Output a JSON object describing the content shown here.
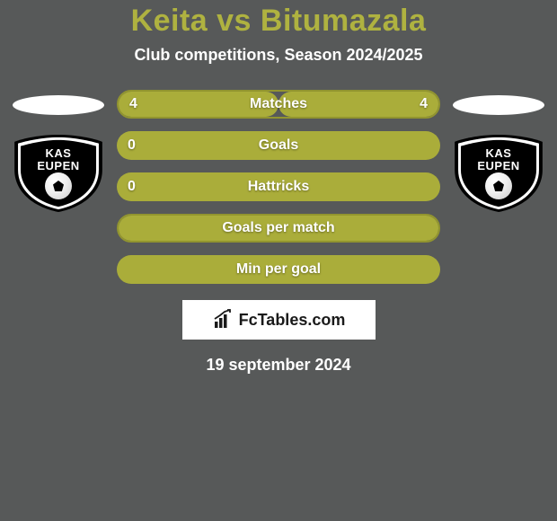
{
  "title": "Keita vs Bitumazala",
  "subtitle": "Club competitions, Season 2024/2025",
  "colors": {
    "background": "#575959",
    "accent": "#aaad3a",
    "bar_border": "#92952f",
    "title": "#afb240",
    "text": "#ffffff",
    "white": "#ffffff",
    "black": "#000000"
  },
  "club_left": {
    "line1": "KAS",
    "line2": "EUPEN"
  },
  "club_right": {
    "line1": "KAS",
    "line2": "EUPEN"
  },
  "stats": [
    {
      "label": "Matches",
      "left_value": "4",
      "right_value": "4",
      "left_pct": 50,
      "right_pct": 50,
      "style": "split",
      "border": true
    },
    {
      "label": "Goals",
      "left_value": "0",
      "right_value": "",
      "left_pct": 0,
      "right_pct": 0,
      "style": "full",
      "border": false
    },
    {
      "label": "Hattricks",
      "left_value": "0",
      "right_value": "",
      "left_pct": 0,
      "right_pct": 0,
      "style": "full",
      "border": false
    },
    {
      "label": "Goals per match",
      "left_value": "",
      "right_value": "",
      "left_pct": 0,
      "right_pct": 0,
      "style": "full",
      "border": true
    },
    {
      "label": "Min per goal",
      "left_value": "",
      "right_value": "",
      "left_pct": 0,
      "right_pct": 0,
      "style": "full",
      "border": false
    }
  ],
  "footer": {
    "brand": "FcTables.com",
    "date": "19 september 2024"
  }
}
